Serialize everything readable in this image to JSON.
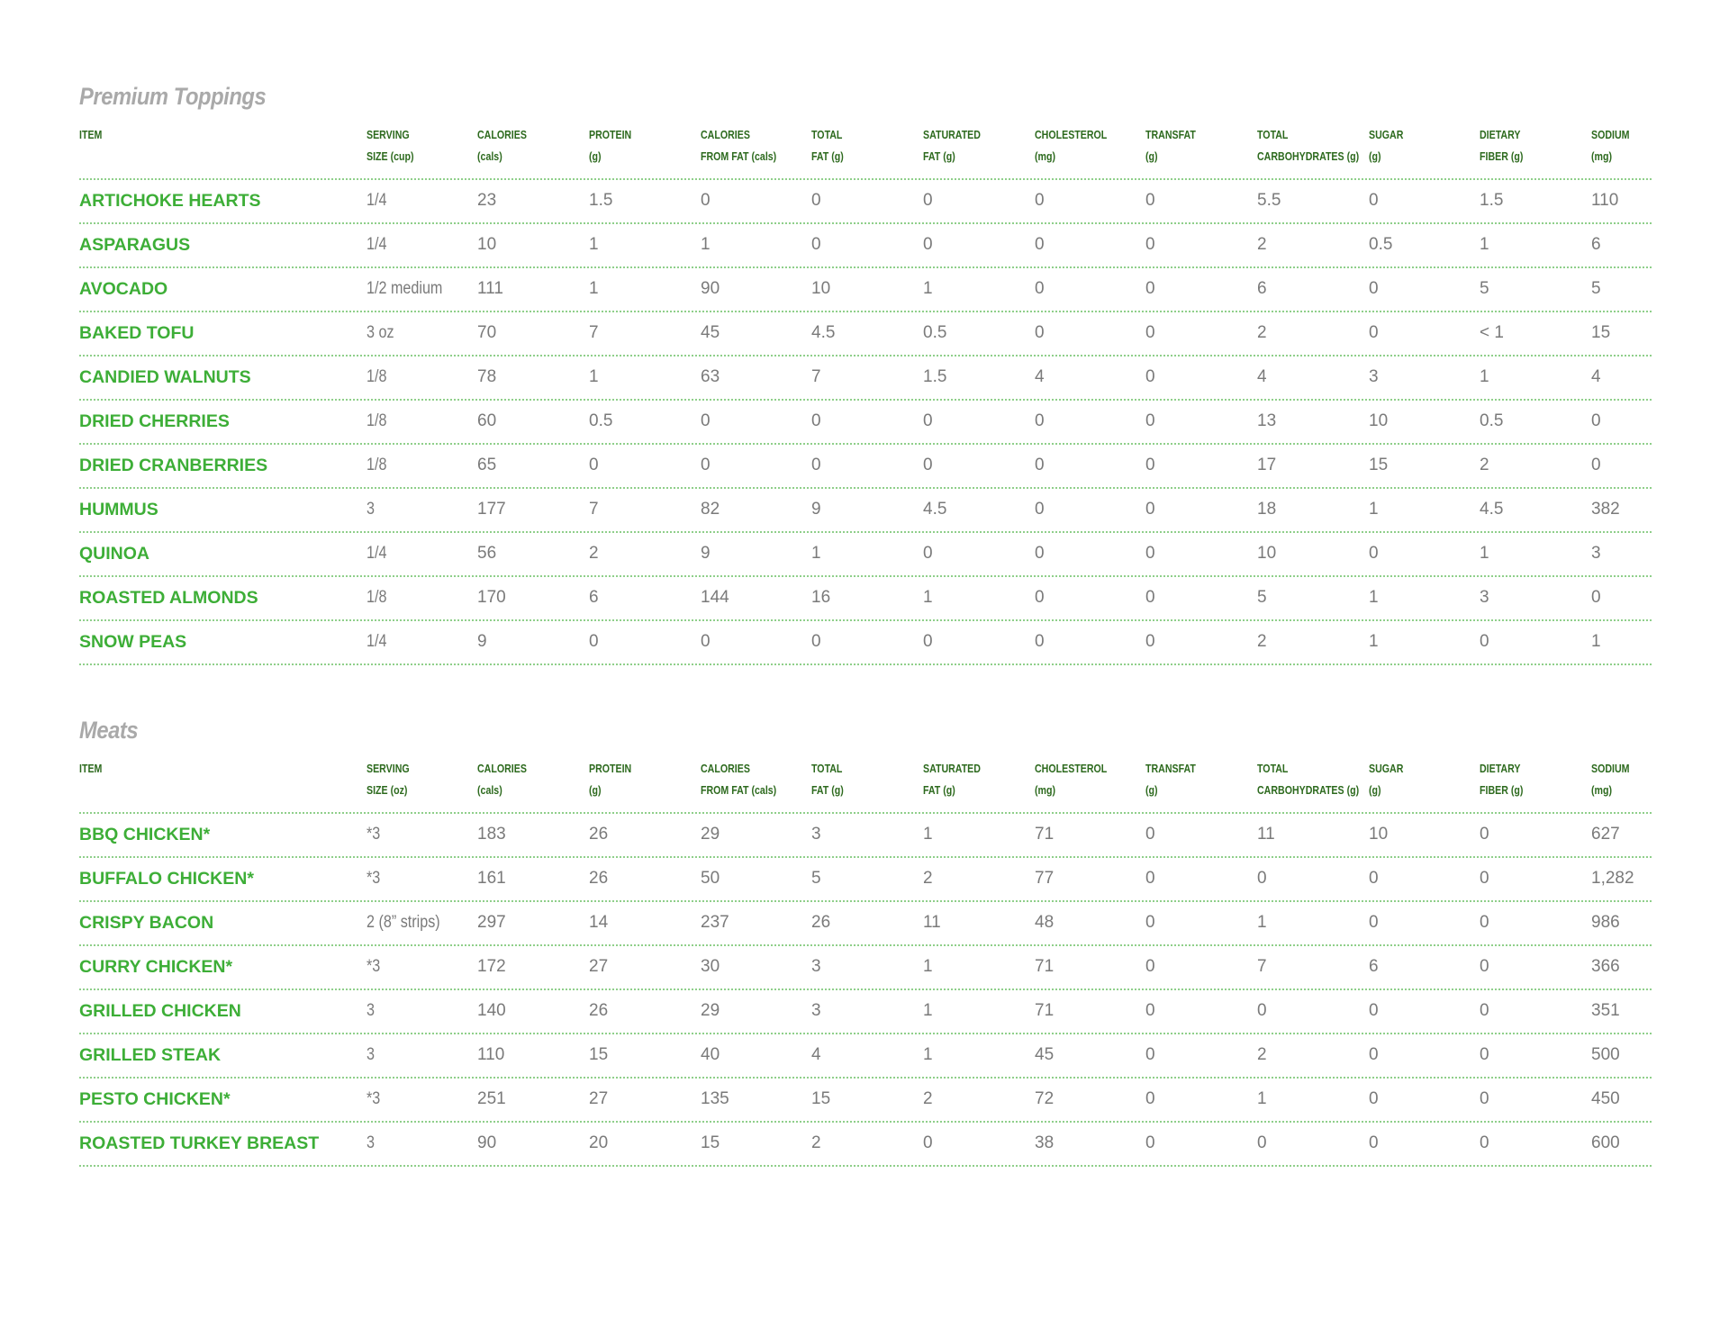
{
  "colors": {
    "item": "#3dae37",
    "header": "#2d6a1e",
    "value": "#7a7a7a",
    "title": "#a9a9a9"
  },
  "sections": [
    {
      "title": "Premium Toppings",
      "headers": [
        [
          "ITEM",
          ""
        ],
        [
          "SERVING",
          "SIZE (cup)"
        ],
        [
          "CALORIES",
          "(cals)"
        ],
        [
          "PROTEIN",
          "(g)"
        ],
        [
          "CALORIES",
          "FROM FAT (cals)"
        ],
        [
          "TOTAL",
          "FAT (g)"
        ],
        [
          "SATURATED",
          "FAT (g)"
        ],
        [
          "CHOLESTEROL",
          "(mg)"
        ],
        [
          "TRANSFAT",
          "(g)"
        ],
        [
          "TOTAL",
          "CARBOHYDRATES (g)"
        ],
        [
          "SUGAR",
          "(g)"
        ],
        [
          "DIETARY",
          "FIBER (g)"
        ],
        [
          "SODIUM",
          "(mg)"
        ]
      ],
      "rows": [
        [
          "ARTICHOKE HEARTS",
          "1/4",
          "23",
          "1.5",
          "0",
          "0",
          "0",
          "0",
          "0",
          "5.5",
          "0",
          "1.5",
          "110"
        ],
        [
          "ASPARAGUS",
          "1/4",
          "10",
          "1",
          "1",
          "0",
          "0",
          "0",
          "0",
          "2",
          "0.5",
          "1",
          "6"
        ],
        [
          "AVOCADO",
          "1/2 medium",
          "111",
          "1",
          "90",
          "10",
          "1",
          "0",
          "0",
          "6",
          "0",
          "5",
          "5"
        ],
        [
          "BAKED TOFU",
          "3 oz",
          "70",
          "7",
          "45",
          "4.5",
          "0.5",
          "0",
          "0",
          "2",
          "0",
          "< 1",
          "15"
        ],
        [
          "CANDIED WALNUTS",
          "1/8",
          "78",
          "1",
          "63",
          "7",
          "1.5",
          "4",
          "0",
          "4",
          "3",
          "1",
          "4"
        ],
        [
          "DRIED CHERRIES",
          "1/8",
          "60",
          "0.5",
          "0",
          "0",
          "0",
          "0",
          "0",
          "13",
          "10",
          "0.5",
          "0"
        ],
        [
          "DRIED CRANBERRIES",
          "1/8",
          "65",
          "0",
          "0",
          "0",
          "0",
          "0",
          "0",
          "17",
          "15",
          "2",
          "0"
        ],
        [
          "HUMMUS",
          "3",
          "177",
          "7",
          "82",
          "9",
          "4.5",
          "0",
          "0",
          "18",
          "1",
          "4.5",
          "382"
        ],
        [
          "QUINOA",
          "1/4",
          "56",
          "2",
          "9",
          "1",
          "0",
          "0",
          "0",
          "10",
          "0",
          "1",
          "3"
        ],
        [
          "ROASTED ALMONDS",
          "1/8",
          "170",
          "6",
          "144",
          "16",
          "1",
          "0",
          "0",
          "5",
          "1",
          "3",
          "0"
        ],
        [
          "SNOW PEAS",
          "1/4",
          "9",
          "0",
          "0",
          "0",
          "0",
          "0",
          "0",
          "2",
          "1",
          "0",
          "1"
        ]
      ]
    },
    {
      "title": "Meats",
      "headers": [
        [
          "ITEM",
          ""
        ],
        [
          "SERVING",
          "SIZE (oz)"
        ],
        [
          "CALORIES",
          "(cals)"
        ],
        [
          "PROTEIN",
          "(g)"
        ],
        [
          "CALORIES",
          "FROM FAT (cals)"
        ],
        [
          "TOTAL",
          "FAT (g)"
        ],
        [
          "SATURATED",
          "FAT (g)"
        ],
        [
          "CHOLESTEROL",
          "(mg)"
        ],
        [
          "TRANSFAT",
          "(g)"
        ],
        [
          "TOTAL",
          "CARBOHYDRATES (g)"
        ],
        [
          "SUGAR",
          "(g)"
        ],
        [
          "DIETARY",
          "FIBER (g)"
        ],
        [
          "SODIUM",
          "(mg)"
        ]
      ],
      "rows": [
        [
          "BBQ CHICKEN*",
          "*3",
          "183",
          "26",
          "29",
          "3",
          "1",
          "71",
          "0",
          "11",
          "10",
          "0",
          "627"
        ],
        [
          "BUFFALO CHICKEN*",
          "*3",
          "161",
          "26",
          "50",
          "5",
          "2",
          "77",
          "0",
          "0",
          "0",
          "0",
          "1,282"
        ],
        [
          "CRISPY BACON",
          "2 (8” strips)",
          "297",
          "14",
          "237",
          "26",
          "11",
          "48",
          "0",
          "1",
          "0",
          "0",
          "986"
        ],
        [
          "CURRY CHICKEN*",
          "*3",
          "172",
          "27",
          "30",
          "3",
          "1",
          "71",
          "0",
          "7",
          "6",
          "0",
          "366"
        ],
        [
          "GRILLED CHICKEN",
          "3",
          "140",
          "26",
          "29",
          "3",
          "1",
          "71",
          "0",
          "0",
          "0",
          "0",
          "351"
        ],
        [
          "GRILLED STEAK",
          "3",
          "110",
          "15",
          "40",
          "4",
          "1",
          "45",
          "0",
          "2",
          "0",
          "0",
          "500"
        ],
        [
          "PESTO CHICKEN*",
          "*3",
          "251",
          "27",
          "135",
          "15",
          "2",
          "72",
          "0",
          "1",
          "0",
          "0",
          "450"
        ],
        [
          "ROASTED TURKEY BREAST",
          "3",
          "90",
          "20",
          "15",
          "2",
          "0",
          "38",
          "0",
          "0",
          "0",
          "0",
          "600"
        ]
      ]
    }
  ]
}
